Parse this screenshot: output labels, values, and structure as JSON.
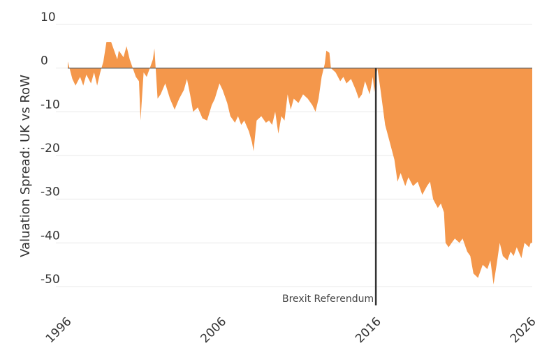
{
  "chart_data": {
    "type": "area",
    "title": "",
    "xlabel": "",
    "ylabel": "Valuation Spread: UK vs RoW",
    "xlim": [
      1996,
      2026
    ],
    "ylim": [
      -53,
      10
    ],
    "x_ticks": [
      1996,
      2006,
      2016,
      2026
    ],
    "x_tick_labels": [
      "1996",
      "2006",
      "2016",
      "2026"
    ],
    "y_ticks": [
      10,
      0,
      -10,
      -20,
      -30,
      -40,
      -50
    ],
    "y_tick_labels": [
      "10",
      "0",
      "-10",
      "-20",
      "-30",
      "-40",
      "-50"
    ],
    "grid": true,
    "fill_color": "#F4974B",
    "baseline_color": "#666666",
    "annotation": {
      "x": 2015.9,
      "label": "Brexit Referendum",
      "line_color": "#333333"
    },
    "series": [
      {
        "values": [
          [
            1996.0,
            1.5
          ],
          [
            1996.3,
            -2.5
          ],
          [
            1996.5,
            -4
          ],
          [
            1996.8,
            -2
          ],
          [
            1997.0,
            -4
          ],
          [
            1997.2,
            -1.5
          ],
          [
            1997.5,
            -3.5
          ],
          [
            1997.7,
            -1
          ],
          [
            1997.9,
            -4
          ],
          [
            1998.1,
            -1
          ],
          [
            1998.3,
            1.5
          ],
          [
            1998.5,
            6
          ],
          [
            1998.8,
            6
          ],
          [
            1999.0,
            4
          ],
          [
            1999.2,
            2
          ],
          [
            1999.3,
            4
          ],
          [
            1999.6,
            2.5
          ],
          [
            1999.8,
            5
          ],
          [
            2000.0,
            2
          ],
          [
            2000.2,
            0
          ],
          [
            2000.4,
            -2
          ],
          [
            2000.6,
            -3
          ],
          [
            2000.7,
            -12
          ],
          [
            2000.9,
            -1
          ],
          [
            2001.1,
            -2
          ],
          [
            2001.3,
            0
          ],
          [
            2001.5,
            2
          ],
          [
            2001.6,
            4.5
          ],
          [
            2001.8,
            -7
          ],
          [
            2002.0,
            -6
          ],
          [
            2002.3,
            -3.5
          ],
          [
            2002.6,
            -7
          ],
          [
            2002.9,
            -9.5
          ],
          [
            2003.2,
            -7
          ],
          [
            2003.5,
            -5
          ],
          [
            2003.7,
            -2.5
          ],
          [
            2003.9,
            -6
          ],
          [
            2004.1,
            -10
          ],
          [
            2004.4,
            -9
          ],
          [
            2004.7,
            -11.5
          ],
          [
            2005.0,
            -12
          ],
          [
            2005.3,
            -8.5
          ],
          [
            2005.5,
            -7
          ],
          [
            2005.8,
            -3.5
          ],
          [
            2006.0,
            -5
          ],
          [
            2006.3,
            -8
          ],
          [
            2006.5,
            -11
          ],
          [
            2006.8,
            -12.5
          ],
          [
            2007.0,
            -11
          ],
          [
            2007.2,
            -13
          ],
          [
            2007.4,
            -12
          ],
          [
            2007.7,
            -14.5
          ],
          [
            2007.9,
            -17
          ],
          [
            2008.0,
            -19
          ],
          [
            2008.2,
            -12
          ],
          [
            2008.5,
            -11
          ],
          [
            2008.8,
            -12.5
          ],
          [
            2009.0,
            -12
          ],
          [
            2009.2,
            -13
          ],
          [
            2009.4,
            -10
          ],
          [
            2009.6,
            -15
          ],
          [
            2009.8,
            -11
          ],
          [
            2010.0,
            -12
          ],
          [
            2010.2,
            -6
          ],
          [
            2010.4,
            -9.5
          ],
          [
            2010.6,
            -7
          ],
          [
            2010.9,
            -8
          ],
          [
            2011.2,
            -6
          ],
          [
            2011.5,
            -7
          ],
          [
            2011.8,
            -8.5
          ],
          [
            2012.0,
            -10
          ],
          [
            2012.2,
            -7
          ],
          [
            2012.4,
            -2
          ],
          [
            2012.6,
            1
          ],
          [
            2012.7,
            4
          ],
          [
            2012.9,
            3.5
          ],
          [
            2013.0,
            0
          ],
          [
            2013.3,
            -1
          ],
          [
            2013.6,
            -3
          ],
          [
            2013.8,
            -2
          ],
          [
            2014.0,
            -3.5
          ],
          [
            2014.3,
            -2.5
          ],
          [
            2014.6,
            -5
          ],
          [
            2014.8,
            -7
          ],
          [
            2015.0,
            -6
          ],
          [
            2015.2,
            -3
          ],
          [
            2015.4,
            -5
          ],
          [
            2015.5,
            -6
          ],
          [
            2015.7,
            -2
          ],
          [
            2015.8,
            -5.5
          ],
          [
            2016.0,
            0
          ],
          [
            2016.2,
            -5
          ],
          [
            2016.5,
            -13
          ],
          [
            2016.8,
            -17
          ],
          [
            2017.1,
            -21
          ],
          [
            2017.3,
            -26
          ],
          [
            2017.5,
            -24
          ],
          [
            2017.8,
            -27
          ],
          [
            2018.0,
            -25
          ],
          [
            2018.3,
            -27
          ],
          [
            2018.6,
            -26
          ],
          [
            2018.9,
            -29
          ],
          [
            2019.2,
            -27
          ],
          [
            2019.4,
            -26
          ],
          [
            2019.6,
            -30
          ],
          [
            2019.9,
            -32
          ],
          [
            2020.1,
            -31
          ],
          [
            2020.3,
            -33
          ],
          [
            2020.4,
            -40
          ],
          [
            2020.6,
            -41
          ],
          [
            2020.8,
            -40
          ],
          [
            2021.0,
            -39
          ],
          [
            2021.3,
            -40
          ],
          [
            2021.5,
            -39
          ],
          [
            2021.8,
            -42
          ],
          [
            2022.0,
            -43
          ],
          [
            2022.2,
            -47
          ],
          [
            2022.5,
            -48
          ],
          [
            2022.8,
            -45
          ],
          [
            2023.1,
            -46
          ],
          [
            2023.3,
            -44
          ],
          [
            2023.5,
            -49.5
          ],
          [
            2023.7,
            -45
          ],
          [
            2023.9,
            -40
          ],
          [
            2024.1,
            -43
          ],
          [
            2024.4,
            -44
          ],
          [
            2024.6,
            -42
          ],
          [
            2024.8,
            -43
          ],
          [
            2025.0,
            -41
          ],
          [
            2025.3,
            -43.5
          ],
          [
            2025.5,
            -40
          ],
          [
            2025.8,
            -41
          ],
          [
            2025.9,
            -40
          ],
          [
            2026.0,
            -40
          ]
        ]
      }
    ]
  }
}
